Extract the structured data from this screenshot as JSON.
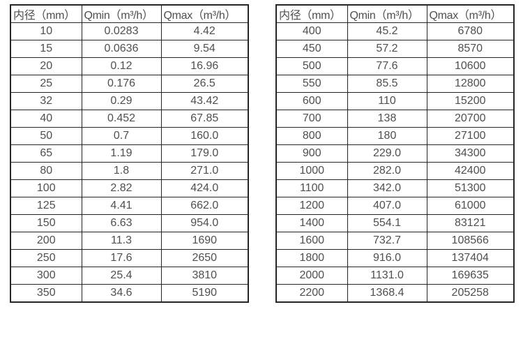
{
  "theme": {
    "bg": "#ffffff",
    "border": "#262626",
    "text": "#4f4f4f"
  },
  "tables": [
    {
      "name": "flow-spec-small-diameters",
      "headers": [
        "内径（mm）",
        "Qmin（m³/h）",
        "Qmax（m³/h）"
      ],
      "rows": [
        [
          "10",
          "0.0283",
          "4.42"
        ],
        [
          "15",
          "0.0636",
          "9.54"
        ],
        [
          "20",
          "0.12",
          "16.96"
        ],
        [
          "25",
          "0.176",
          "26.5"
        ],
        [
          "32",
          "0.29",
          "43.42"
        ],
        [
          "40",
          "0.452",
          "67.85"
        ],
        [
          "50",
          "0.7",
          "160.0"
        ],
        [
          "65",
          "1.19",
          "179.0"
        ],
        [
          "80",
          "1.8",
          "271.0"
        ],
        [
          "100",
          "2.82",
          "424.0"
        ],
        [
          "125",
          "4.41",
          "662.0"
        ],
        [
          "150",
          "6.63",
          "954.0"
        ],
        [
          "200",
          "11.3",
          "1690"
        ],
        [
          "250",
          "17.6",
          "2650"
        ],
        [
          "300",
          "25.4",
          "3810"
        ],
        [
          "350",
          "34.6",
          "5190"
        ]
      ]
    },
    {
      "name": "flow-spec-large-diameters",
      "headers": [
        "内径（mm）",
        "Qmin（m³/h）",
        "Qmax（m³/h）"
      ],
      "rows": [
        [
          "400",
          "45.2",
          "6780"
        ],
        [
          "450",
          "57.2",
          "8570"
        ],
        [
          "500",
          "77.6",
          "10600"
        ],
        [
          "550",
          "85.5",
          "12800"
        ],
        [
          "600",
          "110",
          "15200"
        ],
        [
          "700",
          "138",
          "20700"
        ],
        [
          "800",
          "180",
          "27100"
        ],
        [
          "900",
          "229.0",
          "34300"
        ],
        [
          "1000",
          "282.0",
          "42400"
        ],
        [
          "1100",
          "342.0",
          "51300"
        ],
        [
          "1200",
          "407.0",
          "61000"
        ],
        [
          "1400",
          "554.1",
          "83121"
        ],
        [
          "1600",
          "732.7",
          "108566"
        ],
        [
          "1800",
          "916.0",
          "137404"
        ],
        [
          "2000",
          "1131.0",
          "169635"
        ],
        [
          "2200",
          "1368.4",
          "205258"
        ]
      ]
    }
  ]
}
